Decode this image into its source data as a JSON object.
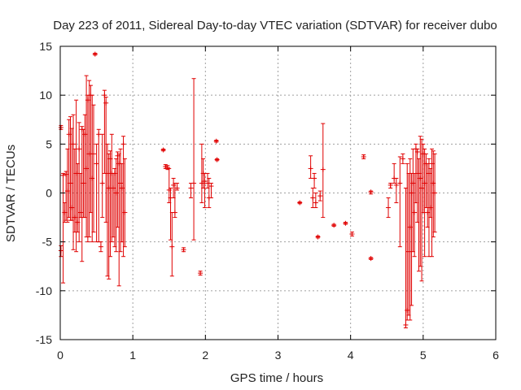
{
  "chart_data": {
    "type": "scatter",
    "title": "Day 223 of 2011, Sidereal Day-to-day VTEC variation (SDTVAR) for receiver dubo",
    "xlabel": "GPS time / hours",
    "ylabel": "SDTVAR / TECUs",
    "xlim": [
      0,
      6
    ],
    "ylim": [
      -15,
      15
    ],
    "x_ticks": [
      0,
      1,
      2,
      3,
      4,
      5,
      6
    ],
    "y_ticks": [
      -15,
      -10,
      -5,
      0,
      5,
      10,
      15
    ],
    "grid": true,
    "marker": "+",
    "series_color": "#e00000",
    "series": [
      {
        "name": "SDTVAR",
        "points": [
          {
            "x": 0.01,
            "y": 6.7,
            "ylo": 6.5,
            "yhi": 6.9
          },
          {
            "x": 0.01,
            "y": -5.9,
            "ylo": -6.5,
            "yhi": -5.4
          },
          {
            "x": 0.04,
            "y": 1.8,
            "ylo": -9.2,
            "yhi": 2.0
          },
          {
            "x": 0.06,
            "y": -2.0,
            "ylo": -3.0,
            "yhi": -1.0
          },
          {
            "x": 0.08,
            "y": 1.9,
            "ylo": -2.8,
            "yhi": 2.2
          },
          {
            "x": 0.1,
            "y": 0.2,
            "ylo": -3.0,
            "yhi": 4.5
          },
          {
            "x": 0.12,
            "y": 6.0,
            "ylo": -2.5,
            "yhi": 7.5
          },
          {
            "x": 0.14,
            "y": 1.0,
            "ylo": -2.8,
            "yhi": 7.8
          },
          {
            "x": 0.16,
            "y": -1.5,
            "ylo": -2.8,
            "yhi": 6.6
          },
          {
            "x": 0.18,
            "y": 5.0,
            "ylo": -5.8,
            "yhi": 8.0
          },
          {
            "x": 0.2,
            "y": -2.5,
            "ylo": -4.0,
            "yhi": 4.5
          },
          {
            "x": 0.22,
            "y": 2.0,
            "ylo": -6.0,
            "yhi": 9.5
          },
          {
            "x": 0.24,
            "y": -3.0,
            "ylo": -4.0,
            "yhi": 3.0
          },
          {
            "x": 0.26,
            "y": 4.5,
            "ylo": -5.0,
            "yhi": 7.2
          },
          {
            "x": 0.28,
            "y": -2.0,
            "ylo": -2.5,
            "yhi": 2.0
          },
          {
            "x": 0.3,
            "y": 6.5,
            "ylo": -7.0,
            "yhi": 6.8
          },
          {
            "x": 0.32,
            "y": 1.0,
            "ylo": -2.5,
            "yhi": 6.5
          },
          {
            "x": 0.34,
            "y": 6.0,
            "ylo": -2.5,
            "yhi": 8.0
          },
          {
            "x": 0.36,
            "y": 2.5,
            "ylo": -4.5,
            "yhi": 12.0
          },
          {
            "x": 0.38,
            "y": 9.5,
            "ylo": -5.0,
            "yhi": 10.0
          },
          {
            "x": 0.4,
            "y": 4.0,
            "ylo": -4.5,
            "yhi": 11.5
          },
          {
            "x": 0.42,
            "y": 10.0,
            "ylo": -2.0,
            "yhi": 11.0
          },
          {
            "x": 0.44,
            "y": 1.5,
            "ylo": -5.0,
            "yhi": 10.0
          },
          {
            "x": 0.46,
            "y": 4.0,
            "ylo": -4.0,
            "yhi": 9.0
          },
          {
            "x": 0.48,
            "y": 14.2,
            "ylo": 14.1,
            "yhi": 14.3
          },
          {
            "x": 0.5,
            "y": 3.0,
            "ylo": -5.0,
            "yhi": 5.0
          },
          {
            "x": 0.53,
            "y": 6.0,
            "ylo": -5.0,
            "yhi": 6.5
          },
          {
            "x": 0.56,
            "y": -5.5,
            "ylo": -6.0,
            "yhi": -5.0
          },
          {
            "x": 0.58,
            "y": 1.0,
            "ylo": -2.5,
            "yhi": 6.0
          },
          {
            "x": 0.61,
            "y": 10.0,
            "ylo": 2.0,
            "yhi": 10.5
          },
          {
            "x": 0.63,
            "y": 9.2,
            "ylo": -3.0,
            "yhi": 9.8
          },
          {
            "x": 0.65,
            "y": 2.0,
            "ylo": -8.5,
            "yhi": 5.0
          },
          {
            "x": 0.67,
            "y": 0.5,
            "ylo": -8.8,
            "yhi": 4.0
          },
          {
            "x": 0.69,
            "y": 3.5,
            "ylo": -6.5,
            "yhi": 4.3
          },
          {
            "x": 0.71,
            "y": 2.0,
            "ylo": -5.0,
            "yhi": 6.0
          },
          {
            "x": 0.73,
            "y": 0.5,
            "ylo": -4.5,
            "yhi": 2.0
          },
          {
            "x": 0.75,
            "y": 2.0,
            "ylo": -5.5,
            "yhi": 2.5
          },
          {
            "x": 0.77,
            "y": 0.0,
            "ylo": -6.0,
            "yhi": 3.5
          },
          {
            "x": 0.79,
            "y": 3.8,
            "ylo": -3.5,
            "yhi": 4.2
          },
          {
            "x": 0.81,
            "y": 3.0,
            "ylo": -9.5,
            "yhi": 4.0
          },
          {
            "x": 0.83,
            "y": 1.0,
            "ylo": -6.0,
            "yhi": 4.5
          },
          {
            "x": 0.85,
            "y": 0.5,
            "ylo": -5.0,
            "yhi": 3.0
          },
          {
            "x": 0.87,
            "y": 5.0,
            "ylo": -6.5,
            "yhi": 5.8
          },
          {
            "x": 0.89,
            "y": -2.0,
            "ylo": -5.5,
            "yhi": 3.5
          },
          {
            "x": 1.42,
            "y": 4.4,
            "ylo": 4.3,
            "yhi": 4.5
          },
          {
            "x": 1.45,
            "y": 2.7,
            "ylo": 2.5,
            "yhi": 2.9
          },
          {
            "x": 1.48,
            "y": 2.6,
            "ylo": 2.4,
            "yhi": 2.8
          },
          {
            "x": 1.5,
            "y": 0.3,
            "ylo": -1.0,
            "yhi": 2.5
          },
          {
            "x": 1.52,
            "y": -0.5,
            "ylo": -4.8,
            "yhi": 0.5
          },
          {
            "x": 1.54,
            "y": -5.5,
            "ylo": -8.5,
            "yhi": -2.0
          },
          {
            "x": 1.56,
            "y": 0.8,
            "ylo": -0.5,
            "yhi": 1.5
          },
          {
            "x": 1.58,
            "y": -2.0,
            "ylo": -2.5,
            "yhi": 1.0
          },
          {
            "x": 1.61,
            "y": 0.5,
            "ylo": 0.3,
            "yhi": 1.0
          },
          {
            "x": 1.7,
            "y": -5.8,
            "ylo": -6.0,
            "yhi": -5.6
          },
          {
            "x": 1.8,
            "y": 0.5,
            "ylo": -0.5,
            "yhi": 1.0
          },
          {
            "x": 1.84,
            "y": 1.0,
            "ylo": -4.8,
            "yhi": 11.7
          },
          {
            "x": 1.93,
            "y": -8.2,
            "ylo": -8.4,
            "yhi": -8.0
          },
          {
            "x": 1.95,
            "y": 1.0,
            "ylo": -1.0,
            "yhi": 5.0
          },
          {
            "x": 1.97,
            "y": 2.0,
            "ylo": 0.5,
            "yhi": 3.5
          },
          {
            "x": 1.99,
            "y": 1.2,
            "ylo": -1.5,
            "yhi": 2.0
          },
          {
            "x": 2.03,
            "y": 1.0,
            "ylo": 0.5,
            "yhi": 2.0
          },
          {
            "x": 2.05,
            "y": -0.5,
            "ylo": -1.5,
            "yhi": 1.5
          },
          {
            "x": 2.08,
            "y": 0.7,
            "ylo": -0.5,
            "yhi": 1.0
          },
          {
            "x": 2.15,
            "y": 5.3,
            "ylo": 5.2,
            "yhi": 5.4
          },
          {
            "x": 2.16,
            "y": 3.4,
            "ylo": 3.3,
            "yhi": 3.5
          },
          {
            "x": 3.3,
            "y": -1.0,
            "ylo": -1.1,
            "yhi": -0.9
          },
          {
            "x": 3.45,
            "y": 2.5,
            "ylo": 1.5,
            "yhi": 3.8
          },
          {
            "x": 3.48,
            "y": -0.5,
            "ylo": -1.5,
            "yhi": 0.5
          },
          {
            "x": 3.5,
            "y": 1.5,
            "ylo": 0.5,
            "yhi": 2.0
          },
          {
            "x": 3.52,
            "y": -1.0,
            "ylo": -1.5,
            "yhi": 0.0
          },
          {
            "x": 3.55,
            "y": -4.5,
            "ylo": -4.6,
            "yhi": -4.4
          },
          {
            "x": 3.58,
            "y": -0.3,
            "ylo": -0.8,
            "yhi": 0.2
          },
          {
            "x": 3.62,
            "y": 2.4,
            "ylo": -2.5,
            "yhi": 7.1
          },
          {
            "x": 3.77,
            "y": -3.3,
            "ylo": -3.4,
            "yhi": -3.2
          },
          {
            "x": 3.93,
            "y": -3.1,
            "ylo": -3.2,
            "yhi": -3.0
          },
          {
            "x": 4.02,
            "y": -4.2,
            "ylo": -4.4,
            "yhi": -4.0
          },
          {
            "x": 4.18,
            "y": 3.7,
            "ylo": 3.5,
            "yhi": 3.9
          },
          {
            "x": 4.28,
            "y": 0.1,
            "ylo": -0.1,
            "yhi": 0.2
          },
          {
            "x": 4.28,
            "y": -6.7,
            "ylo": -6.8,
            "yhi": -6.6
          },
          {
            "x": 4.52,
            "y": -1.5,
            "ylo": -2.5,
            "yhi": -0.5
          },
          {
            "x": 4.55,
            "y": 0.8,
            "ylo": 0.5,
            "yhi": 1.0
          },
          {
            "x": 4.6,
            "y": 1.5,
            "ylo": 1.0,
            "yhi": 3.0
          },
          {
            "x": 4.63,
            "y": 0.8,
            "ylo": -1.0,
            "yhi": 1.5
          },
          {
            "x": 4.68,
            "y": 1.0,
            "ylo": -5.5,
            "yhi": 3.7
          },
          {
            "x": 4.72,
            "y": 3.5,
            "ylo": 3.0,
            "yhi": 4.0
          },
          {
            "x": 4.76,
            "y": -13.5,
            "ylo": -13.8,
            "yhi": 0.5
          },
          {
            "x": 4.78,
            "y": -12.0,
            "ylo": -13.0,
            "yhi": 3.0
          },
          {
            "x": 4.8,
            "y": -6.0,
            "ylo": -12.5,
            "yhi": 2.0
          },
          {
            "x": 4.82,
            "y": -3.5,
            "ylo": -13.0,
            "yhi": 3.5
          },
          {
            "x": 4.84,
            "y": 0.0,
            "ylo": -11.5,
            "yhi": 2.0
          },
          {
            "x": 4.86,
            "y": 1.0,
            "ylo": -6.0,
            "yhi": 4.5
          },
          {
            "x": 4.88,
            "y": -2.0,
            "ylo": -6.5,
            "yhi": 2.0
          },
          {
            "x": 4.9,
            "y": 4.5,
            "ylo": -1.0,
            "yhi": 5.0
          },
          {
            "x": 4.92,
            "y": 4.2,
            "ylo": -3.0,
            "yhi": 4.5
          },
          {
            "x": 4.94,
            "y": 2.0,
            "ylo": -8.0,
            "yhi": 3.5
          },
          {
            "x": 4.96,
            "y": 1.5,
            "ylo": -7.5,
            "yhi": 5.8
          },
          {
            "x": 4.98,
            "y": 0.5,
            "ylo": -9.0,
            "yhi": 5.5
          },
          {
            "x": 5.0,
            "y": 4.0,
            "ylo": -2.0,
            "yhi": 5.0
          },
          {
            "x": 5.02,
            "y": 1.0,
            "ylo": -6.5,
            "yhi": 4.5
          },
          {
            "x": 5.04,
            "y": 3.0,
            "ylo": -1.5,
            "yhi": 4.0
          },
          {
            "x": 5.06,
            "y": -2.0,
            "ylo": -3.5,
            "yhi": 3.0
          },
          {
            "x": 5.08,
            "y": 2.0,
            "ylo": -6.5,
            "yhi": 3.5
          },
          {
            "x": 5.1,
            "y": -1.5,
            "ylo": -2.5,
            "yhi": 2.5
          },
          {
            "x": 5.12,
            "y": 3.0,
            "ylo": -6.5,
            "yhi": 4.5
          },
          {
            "x": 5.14,
            "y": 1.0,
            "ylo": -4.5,
            "yhi": 4.3
          },
          {
            "x": 5.16,
            "y": 0.0,
            "ylo": -4.0,
            "yhi": 4.0
          }
        ]
      }
    ]
  }
}
